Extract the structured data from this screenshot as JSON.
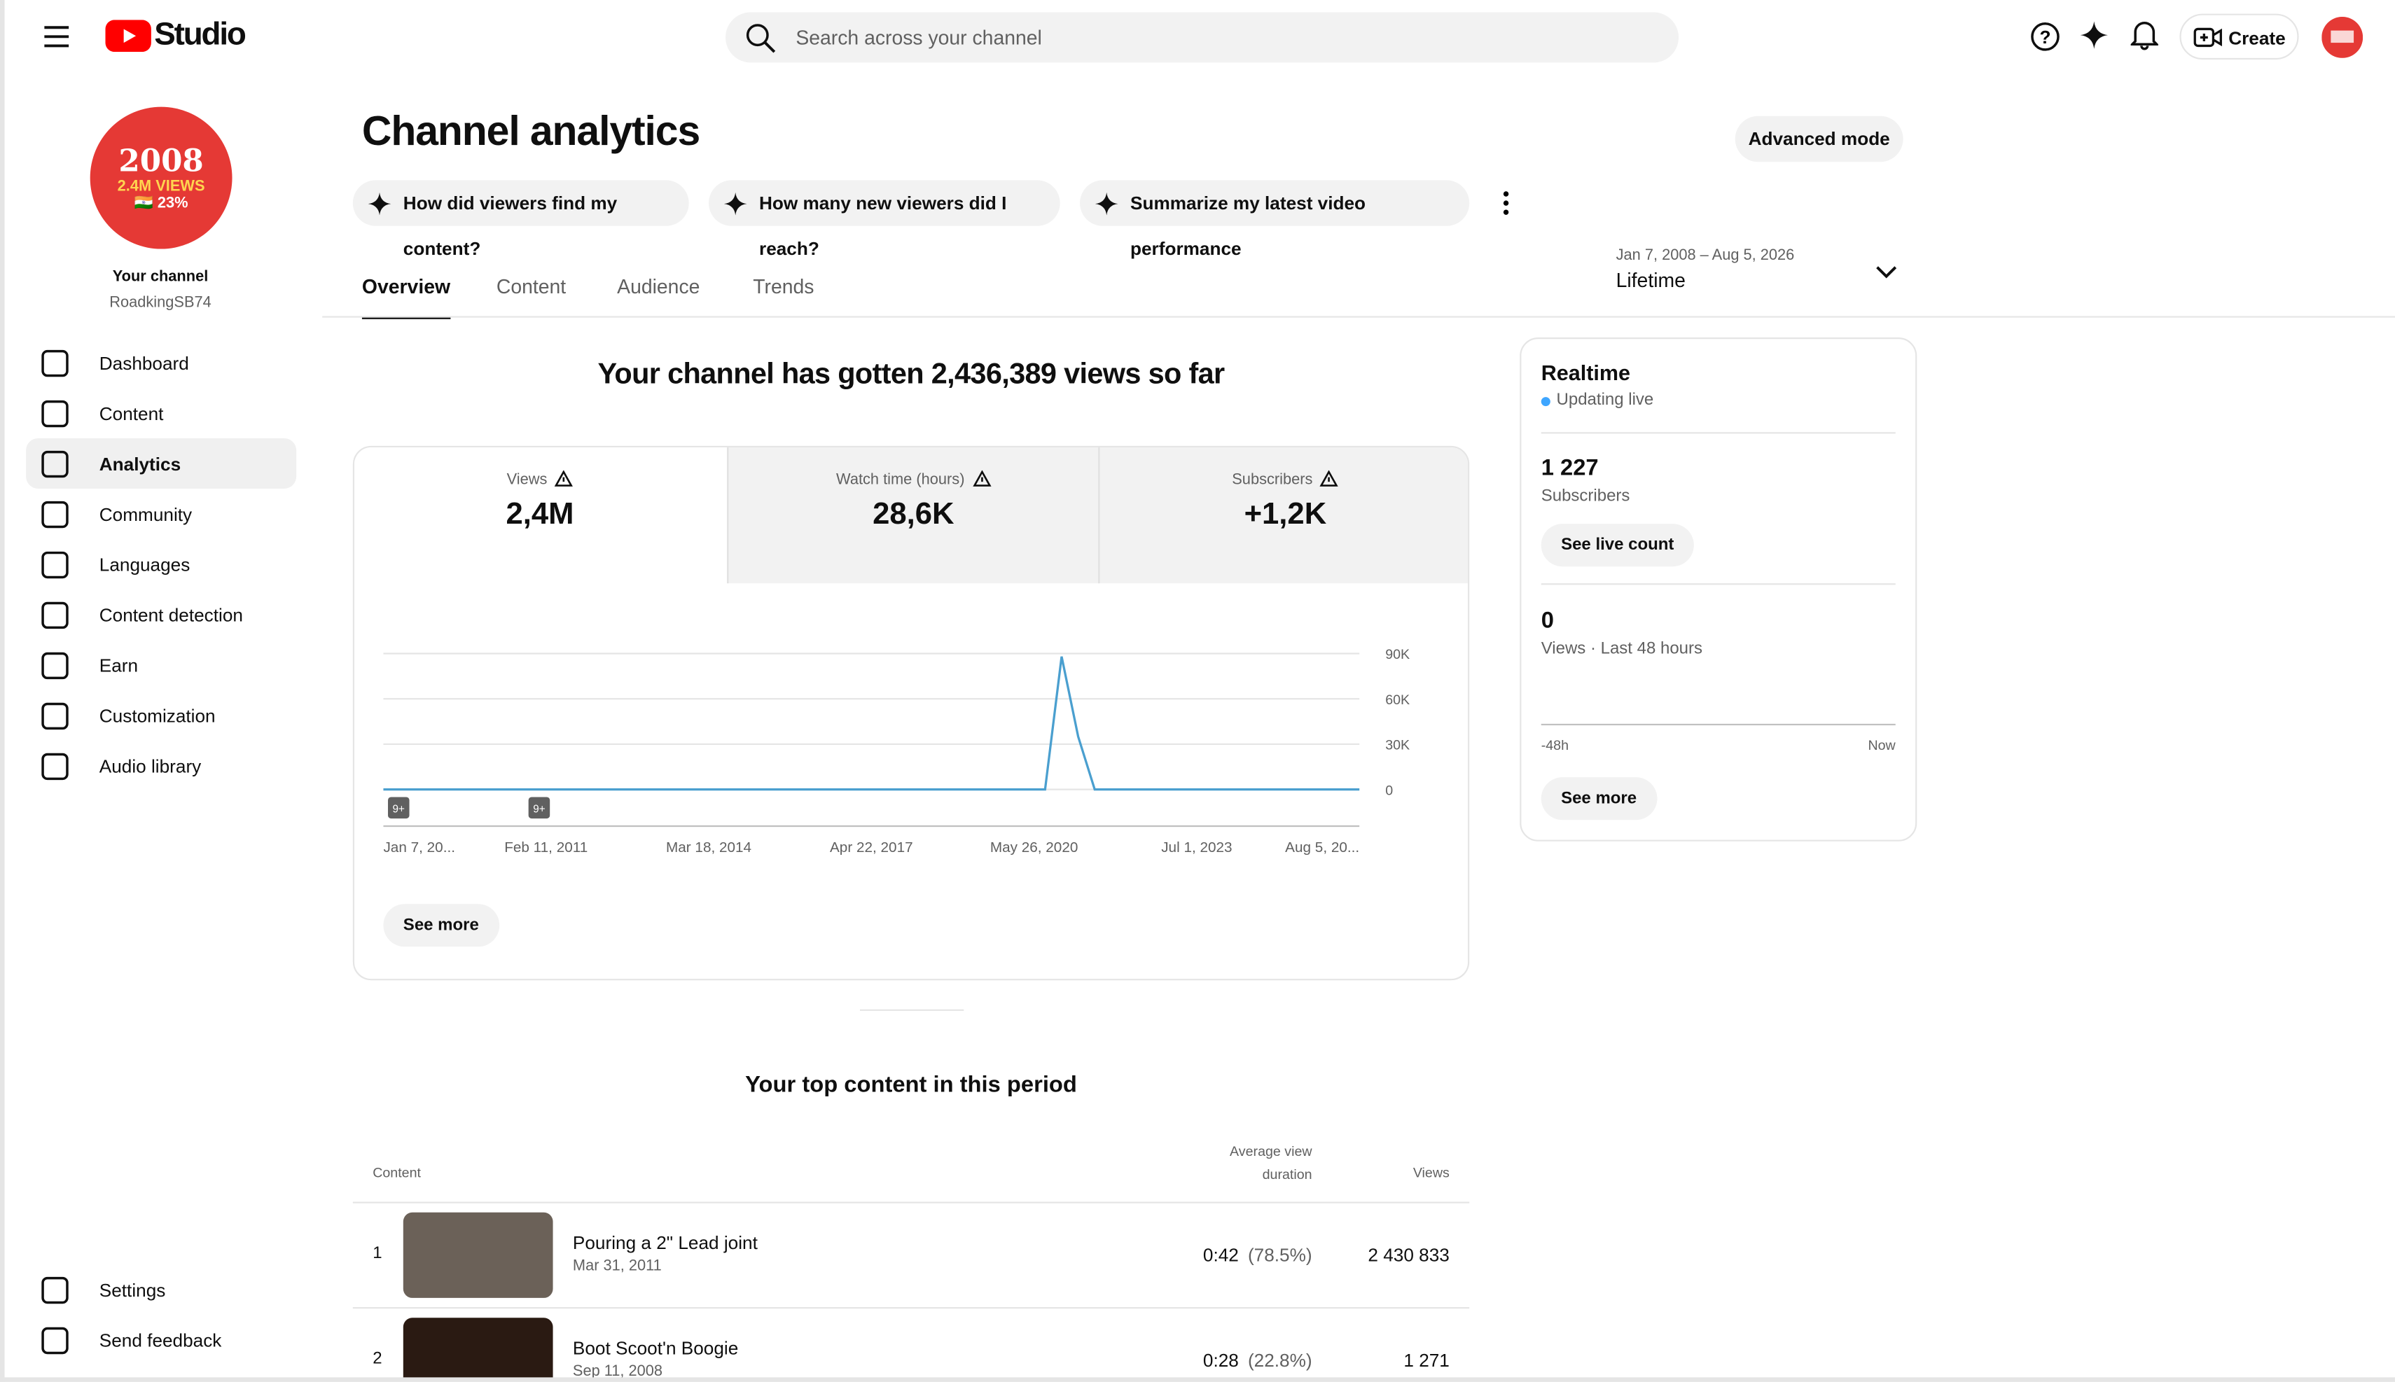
{
  "header": {
    "logo": "Studio",
    "search_placeholder": "Search across your channel",
    "create": "Create"
  },
  "sidebar": {
    "avatar_lines": [
      "2008",
      "2.4M VIEWS",
      "🇮🇳 23%"
    ],
    "channel_label": "Your channel",
    "channel_name": "RoadkingSB74",
    "active": 2,
    "nav": [
      "Dashboard",
      "Content",
      "Analytics",
      "Community",
      "Languages",
      "Content detection",
      "Earn",
      "Customization",
      "Audio library"
    ],
    "bottom": [
      "Settings",
      "Send feedback"
    ]
  },
  "page": {
    "title": "Channel analytics",
    "advanced_mode": "Advanced mode",
    "prompts": [
      "How did viewers find my content?",
      "How many new viewers did I reach?",
      "Summarize my latest video performance"
    ],
    "tabs": [
      "Overview",
      "Content",
      "Audience",
      "Trends"
    ],
    "active_tab": 0,
    "date_range": "Jan 7, 2008 – Aug 5, 2026",
    "period": "Lifetime"
  },
  "summary": {
    "headline": "Your channel has gotten 2,436,389 views so far",
    "metrics": [
      {
        "label": "Views",
        "value": "2,4M"
      },
      {
        "label": "Watch time (hours)",
        "value": "28,6K"
      },
      {
        "label": "Subscribers",
        "value": "+1,2K"
      }
    ],
    "selected": 0,
    "see_more": "See more"
  },
  "chart_data": {
    "type": "line",
    "color": "#4a9fcf",
    "values": [
      0,
      0,
      0,
      0,
      0,
      0,
      0,
      0,
      0,
      0,
      0,
      0,
      0,
      0,
      0,
      0,
      0,
      0,
      0,
      0,
      0,
      0,
      0,
      0,
      0,
      0,
      0,
      0,
      0,
      0,
      0,
      0,
      0,
      0,
      0,
      0,
      0,
      0,
      0,
      0,
      0,
      88000,
      35000,
      0,
      0,
      0,
      0,
      0,
      0,
      0,
      0,
      0,
      0,
      0,
      0,
      0,
      0,
      0,
      0,
      0
    ],
    "ylim": [
      0,
      90000
    ],
    "yticks": [
      0,
      {
        "value": 30000,
        "label": "30K"
      },
      {
        "value": 60000,
        "label": "60K"
      },
      {
        "value": 90000,
        "label": "90K"
      }
    ],
    "grid": true,
    "x_labels": [
      "Jan 7, 20...",
      "Feb 11, 2011",
      "Mar 18, 2014",
      "Apr 22, 2017",
      "May 26, 2020",
      "Jul 1, 2023",
      "Aug 5, 20..."
    ],
    "annotations": [
      "9+",
      "9+"
    ]
  },
  "realtime": {
    "title": "Realtime",
    "status": "Updating live",
    "subscribers": "1 227",
    "subscribers_label": "Subscribers",
    "see_live": "See live count",
    "views": "0",
    "views_label": "Views · Last 48 hours",
    "axis_start": "-48h",
    "axis_end": "Now",
    "see_more": "See more"
  },
  "top_content": {
    "title": "Your top content in this period",
    "headers": [
      "Content",
      "Average view duration",
      "Views"
    ],
    "rows": [
      {
        "rank": "1",
        "title": "Pouring a 2\" Lead joint",
        "date": "Mar 31, 2011",
        "duration": "0:42",
        "percent": "(78.5%)",
        "views": "2 430 833"
      },
      {
        "rank": "2",
        "title": "Boot Scoot'n Boogie",
        "date": "Sep 11, 2008",
        "duration": "0:28",
        "percent": "(22.8%)",
        "views": "1 271"
      }
    ]
  }
}
